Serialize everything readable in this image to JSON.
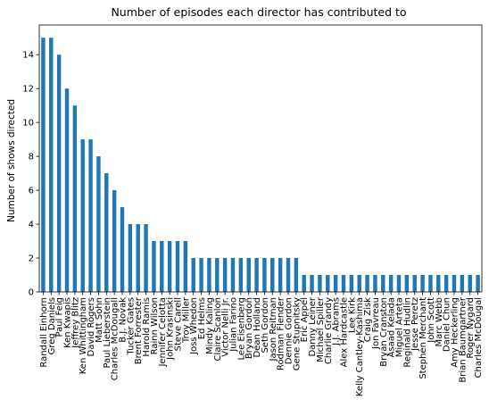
{
  "chart_data": {
    "type": "bar",
    "title": "Number of episodes each director has contributed to",
    "xlabel": "",
    "ylabel": "Number of shows directed",
    "ylim": [
      0,
      15.75
    ],
    "yticks": [
      0,
      2,
      4,
      6,
      8,
      10,
      12,
      14
    ],
    "grid": false,
    "bar_color": "#1f77b4",
    "categories": [
      "Randall Einhorn",
      "Greg Daniels",
      "Paul Feig",
      "Ken Kwapis",
      "Jeffrey Blitz",
      "Ken Whittingham",
      "David Rogers",
      "Matt Sohn",
      "Paul Lieberstein",
      "Charles McDougall",
      "B.J. Novak",
      "Tucker Gates",
      "Brent Forrester",
      "Harold Ramis",
      "Rainn Wilson",
      "Jennifer Celotta",
      "John Krasinski",
      "Steve Carell",
      "Troy Miller",
      "Joss Whedon",
      "Ed Helms",
      "Mindy Kaling",
      "Claire Scanlon",
      "Victor Nelli Jr.",
      "Julian Farino",
      "Lee Eisenberg",
      "Bryan Gordon",
      "Dean Holland",
      "Seth Gordon",
      "Jason Reitman",
      "Rodman Flender",
      "Dennie Gordon",
      "Gene Stupnitsky",
      "Eric Appel",
      "Danny Leiner",
      "Michael Spiller",
      "Charlie Grandy",
      "J.J. Abrams",
      "Alex Hardcastle",
      "Lee Kirk",
      "Kelly Cantley-Kashima",
      "Craig Zisk",
      "Jon Favreau",
      "Bryan Cranston",
      "Asaad Kelada",
      "Miguel Arteta",
      "Reginald Hudlin",
      "Jesse Peretz",
      "Stephen Merchant",
      "John Scott",
      "Marc Webb",
      "Daniel Chun",
      "Amy Heckerling",
      "Brian Baumgartner",
      "Roger Nygard",
      "Charles McDougal"
    ],
    "values": [
      15,
      15,
      14,
      12,
      11,
      9,
      9,
      8,
      7,
      6,
      5,
      4,
      4,
      4,
      3,
      3,
      3,
      3,
      3,
      2,
      2,
      2,
      2,
      2,
      2,
      2,
      2,
      2,
      2,
      2,
      2,
      2,
      2,
      1,
      1,
      1,
      1,
      1,
      1,
      1,
      1,
      1,
      1,
      1,
      1,
      1,
      1,
      1,
      1,
      1,
      1,
      1,
      1,
      1,
      1,
      1
    ]
  }
}
